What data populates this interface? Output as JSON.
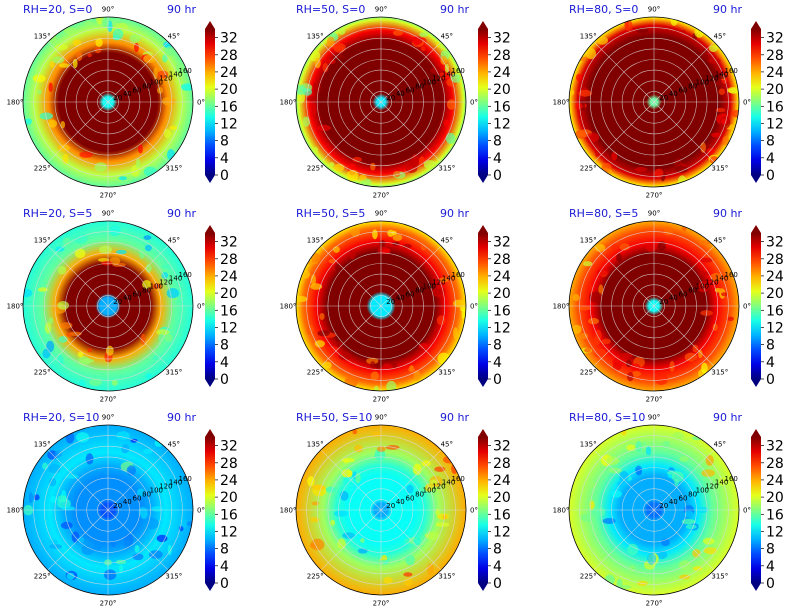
{
  "figure": {
    "panels": [
      {
        "title": "RH=20, S=0",
        "time_label": "90 hr",
        "core": 13,
        "inner": 34,
        "mid": 25,
        "outer": 19,
        "edge": 16,
        "inner_extent": 0.58,
        "core_extent": 0.06
      },
      {
        "title": "RH=50, S=0",
        "time_label": "90 hr",
        "core": 12,
        "inner": 34,
        "mid": 30,
        "outer": 20,
        "edge": 17,
        "inner_extent": 0.72,
        "core_extent": 0.05
      },
      {
        "title": "RH=80, S=0",
        "time_label": "90 hr",
        "core": 16,
        "inner": 34,
        "mid": 31,
        "outer": 24,
        "edge": 21,
        "inner_extent": 0.78,
        "core_extent": 0.04
      },
      {
        "title": "RH=20, S=5",
        "time_label": "90 hr",
        "core": 10,
        "inner": 34,
        "mid": 24,
        "outer": 16,
        "edge": 14,
        "inner_extent": 0.5,
        "core_extent": 0.1
      },
      {
        "title": "RH=50, S=5",
        "time_label": "90 hr",
        "core": 12,
        "inner": 34,
        "mid": 30,
        "outer": 26,
        "edge": 22,
        "inner_extent": 0.64,
        "core_extent": 0.12
      },
      {
        "title": "RH=80, S=5",
        "time_label": "90 hr",
        "core": 13,
        "inner": 34,
        "mid": 30,
        "outer": 27,
        "edge": 24,
        "inner_extent": 0.62,
        "core_extent": 0.06
      },
      {
        "title": "RH=20, S=10",
        "time_label": "90 hr",
        "core": 7,
        "inner": 9,
        "mid": 10,
        "outer": 12,
        "edge": 10,
        "inner_extent": 0.4,
        "core_extent": 0.08
      },
      {
        "title": "RH=50, S=10",
        "time_label": "90 hr",
        "core": 10,
        "inner": 13,
        "mid": 14,
        "outer": 18,
        "edge": 24,
        "inner_extent": 0.4,
        "core_extent": 0.08
      },
      {
        "title": "RH=80, S=10",
        "time_label": "90 hr",
        "core": 8,
        "inner": 10,
        "mid": 12,
        "outer": 16,
        "edge": 20,
        "inner_extent": 0.4,
        "core_extent": 0.08
      }
    ],
    "angle_labels": [
      "0°",
      "45°",
      "90°",
      "135°",
      "180°",
      "225°",
      "270°",
      "315°"
    ],
    "radial_labels": [
      "20",
      "40",
      "60",
      "80",
      "100",
      "120",
      "140",
      "160"
    ],
    "colorbar_ticks": [
      "0",
      "4",
      "8",
      "12",
      "16",
      "20",
      "24",
      "28",
      "32"
    ],
    "colormap": "jet"
  },
  "chart_data": {
    "type": "heatmap",
    "projection": "polar",
    "layout": "3x3 grid",
    "row_variable": "S",
    "row_values": [
      0,
      5,
      10
    ],
    "col_variable": "RH",
    "col_values": [
      20,
      50,
      80
    ],
    "theta_ticks_deg": [
      0,
      45,
      90,
      135,
      180,
      225,
      270,
      315
    ],
    "r_ticks": [
      20,
      40,
      60,
      80,
      100,
      120,
      140,
      160
    ],
    "colorbar": {
      "min": 0,
      "max": 34,
      "ticks": [
        0,
        4,
        8,
        12,
        16,
        20,
        24,
        28,
        32
      ],
      "extend": "both",
      "colormap": "jet"
    },
    "series": [
      {
        "panel": "RH=20, S=0",
        "radial_profile": [
          13,
          34,
          34,
          34,
          25,
          19,
          16
        ]
      },
      {
        "panel": "RH=50, S=0",
        "radial_profile": [
          12,
          34,
          34,
          34,
          34,
          30,
          20,
          17
        ]
      },
      {
        "panel": "RH=80, S=0",
        "radial_profile": [
          16,
          34,
          34,
          34,
          34,
          31,
          24,
          21
        ]
      },
      {
        "panel": "RH=20, S=5",
        "radial_profile": [
          10,
          34,
          34,
          24,
          16,
          14
        ]
      },
      {
        "panel": "RH=50, S=5",
        "radial_profile": [
          12,
          34,
          34,
          34,
          30,
          26,
          22
        ]
      },
      {
        "panel": "RH=80, S=5",
        "radial_profile": [
          13,
          34,
          34,
          34,
          30,
          27,
          24
        ]
      },
      {
        "panel": "RH=20, S=10",
        "radial_profile": [
          7,
          9,
          10,
          12,
          10
        ]
      },
      {
        "panel": "RH=50, S=10",
        "radial_profile": [
          10,
          13,
          14,
          18,
          24
        ]
      },
      {
        "panel": "RH=80, S=10",
        "radial_profile": [
          8,
          10,
          12,
          16,
          20
        ]
      }
    ]
  }
}
